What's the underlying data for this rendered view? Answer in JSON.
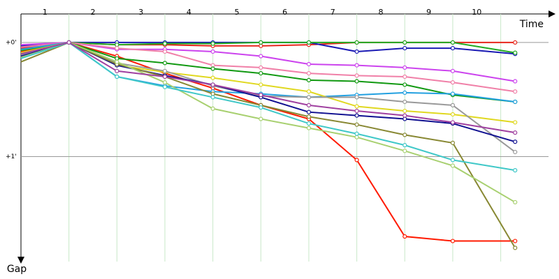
{
  "chart_data": {
    "type": "line",
    "x_label": "Time",
    "y_label": "Gap",
    "categories": [
      "1",
      "2",
      "3",
      "4",
      "5",
      "6",
      "7",
      "8",
      "9",
      "10"
    ],
    "x": [
      0,
      1,
      2,
      3,
      4,
      5,
      6,
      7,
      8,
      9,
      10.3
    ],
    "xlim": [
      0,
      11.2
    ],
    "ylim": [
      -0.25,
      1.92
    ],
    "yticks": [
      {
        "value": 0,
        "label": "+0'"
      },
      {
        "value": 1,
        "label": "+1'"
      }
    ],
    "grid": true,
    "series": [
      {
        "color": "#e8261c",
        "values": [
          0.05,
          0,
          0.02,
          0.02,
          0.03,
          0.03,
          0.02,
          0,
          0,
          0,
          0
        ]
      },
      {
        "color": "#ff1a00",
        "values": [
          0.08,
          0,
          0.12,
          0.27,
          0.4,
          0.55,
          0.67,
          1.03,
          1.7,
          1.74,
          1.74
        ]
      },
      {
        "color": "#1a1ab4",
        "values": [
          0.03,
          0,
          0,
          0,
          0,
          0,
          0,
          0.08,
          0.05,
          0.05,
          0.1
        ]
      },
      {
        "color": "#22aa22",
        "values": [
          0.07,
          0,
          0.02,
          0.01,
          0.01,
          0,
          0,
          0,
          0,
          0,
          0.09
        ]
      },
      {
        "color": "#cc44ee",
        "values": [
          0.02,
          0,
          0.06,
          0.06,
          0.08,
          0.12,
          0.19,
          0.2,
          0.22,
          0.25,
          0.34
        ]
      },
      {
        "color": "#f080a8",
        "values": [
          0.04,
          0,
          0.05,
          0.08,
          0.2,
          0.22,
          0.27,
          0.29,
          0.3,
          0.35,
          0.43
        ]
      },
      {
        "color": "#119911",
        "values": [
          0.1,
          0,
          0.14,
          0.18,
          0.23,
          0.27,
          0.33,
          0.34,
          0.37,
          0.46,
          0.52
        ]
      },
      {
        "color": "#22a0e0",
        "values": [
          0.06,
          0,
          0.3,
          0.38,
          0.43,
          0.45,
          0.48,
          0.46,
          0.44,
          0.45,
          0.52
        ]
      },
      {
        "color": "#e0d820",
        "values": [
          0.09,
          0,
          0.2,
          0.26,
          0.31,
          0.37,
          0.43,
          0.56,
          0.6,
          0.63,
          0.7
        ]
      },
      {
        "color": "#999999",
        "values": [
          0.11,
          0,
          0.18,
          0.25,
          0.38,
          0.47,
          0.48,
          0.48,
          0.52,
          0.55,
          0.96
        ]
      },
      {
        "color": "#101090",
        "values": [
          0.12,
          0,
          0.2,
          0.29,
          0.37,
          0.48,
          0.61,
          0.64,
          0.67,
          0.71,
          0.87
        ]
      },
      {
        "color": "#888833",
        "values": [
          0.17,
          0,
          0.19,
          0.3,
          0.45,
          0.55,
          0.65,
          0.72,
          0.81,
          0.88,
          1.8
        ]
      },
      {
        "color": "#a8d070",
        "values": [
          0.13,
          0,
          0.17,
          0.35,
          0.58,
          0.67,
          0.75,
          0.83,
          0.95,
          1.08,
          1.4
        ]
      },
      {
        "color": "#40c8c8",
        "values": [
          0.14,
          0,
          0.3,
          0.39,
          0.48,
          0.57,
          0.71,
          0.8,
          0.9,
          1.03,
          1.12
        ]
      },
      {
        "color": "#a040a0",
        "values": [
          0.1,
          0,
          0.25,
          0.3,
          0.37,
          0.46,
          0.55,
          0.6,
          0.64,
          0.7,
          0.79
        ]
      }
    ]
  }
}
